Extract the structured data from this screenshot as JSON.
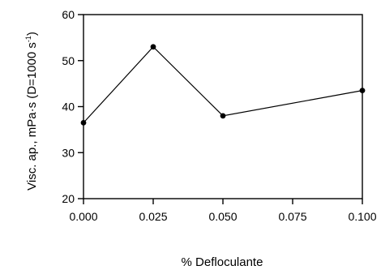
{
  "chart_data": {
    "type": "line",
    "title": "",
    "xlabel": "% Defloculante",
    "ylabel": {
      "main": "Visc. ap., mPa·s (D=1000 s",
      "sup": "-1",
      "close": ")"
    },
    "x": [
      0.0,
      0.025,
      0.05,
      0.1
    ],
    "series": [
      {
        "name": "",
        "values": [
          36.5,
          53,
          38,
          43.5
        ]
      }
    ],
    "xlim": [
      0,
      0.1
    ],
    "ylim": [
      20,
      60
    ],
    "xticks": [
      {
        "value": 0.0,
        "label": "0.000"
      },
      {
        "value": 0.025,
        "label": "0.025"
      },
      {
        "value": 0.05,
        "label": "0.050"
      },
      {
        "value": 0.075,
        "label": "0.075"
      },
      {
        "value": 0.1,
        "label": "0.100"
      }
    ],
    "yticks": [
      {
        "value": 20,
        "label": "20"
      },
      {
        "value": 30,
        "label": "30"
      },
      {
        "value": 40,
        "label": "40"
      },
      {
        "value": 50,
        "label": "50"
      },
      {
        "value": 60,
        "label": "60"
      }
    ],
    "grid": false,
    "legend": "none",
    "line_color": "#000000"
  }
}
